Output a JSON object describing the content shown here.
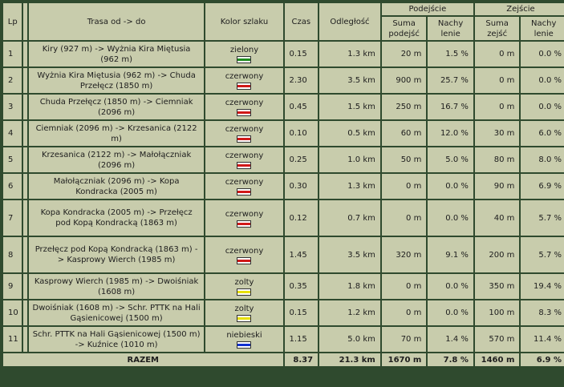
{
  "headers": {
    "lp": "Lp",
    "route": "Trasa od -> do",
    "color": "Kolor szlaku",
    "time": "Czas",
    "distance": "Odległość",
    "ascent": "Podejście",
    "descent": "Zejście",
    "sum_ascent": "Suma podejść",
    "slope": "Nachy lenie",
    "sum_descent": "Suma zejść",
    "slope2": "Nachy lenie"
  },
  "trail_colors": {
    "zielony": "#1e8c1e",
    "czerwony": "#d01818",
    "zolty": "#e8e000",
    "niebieski": "#1030d0"
  },
  "rows": [
    {
      "lp": "1",
      "route": "Kiry (927 m) -> Wyżnia Kira Miętusia (962 m)",
      "color": "zielony",
      "time": "0.15",
      "distance": "1.3 km",
      "ascent": "20 m",
      "ascent_slope": "1.5 %",
      "descent": "0 m",
      "descent_slope": "0.0 %"
    },
    {
      "lp": "2",
      "route": "Wyżnia Kira Miętusia (962 m) -> Chuda Przełęcz (1850 m)",
      "color": "czerwony",
      "time": "2.30",
      "distance": "3.5 km",
      "ascent": "900 m",
      "ascent_slope": "25.7 %",
      "descent": "0 m",
      "descent_slope": "0.0 %"
    },
    {
      "lp": "3",
      "route": "Chuda Przełęcz (1850 m) -> Ciemniak (2096 m)",
      "color": "czerwony",
      "time": "0.45",
      "distance": "1.5 km",
      "ascent": "250 m",
      "ascent_slope": "16.7 %",
      "descent": "0 m",
      "descent_slope": "0.0 %"
    },
    {
      "lp": "4",
      "route": "Ciemniak (2096 m) -> Krzesanica (2122 m)",
      "color": "czerwony",
      "time": "0.10",
      "distance": "0.5 km",
      "ascent": "60 m",
      "ascent_slope": "12.0 %",
      "descent": "30 m",
      "descent_slope": "6.0 %"
    },
    {
      "lp": "5",
      "route": "Krzesanica (2122 m) -> Małołączniak (2096 m)",
      "color": "czerwony",
      "time": "0.25",
      "distance": "1.0 km",
      "ascent": "50 m",
      "ascent_slope": "5.0 %",
      "descent": "80 m",
      "descent_slope": "8.0 %"
    },
    {
      "lp": "6",
      "route": "Małołączniak (2096 m) -> Kopa Kondracka (2005 m)",
      "color": "czerwony",
      "time": "0.30",
      "distance": "1.3 km",
      "ascent": "0 m",
      "ascent_slope": "0.0 %",
      "descent": "90 m",
      "descent_slope": "6.9 %"
    },
    {
      "lp": "7",
      "route": "Kopa Kondracka (2005 m) -> Przełęcz pod Kopą Kondracką (1863 m)",
      "color": "czerwony",
      "time": "0.12",
      "distance": "0.7 km",
      "ascent": "0 m",
      "ascent_slope": "0.0 %",
      "descent": "40 m",
      "descent_slope": "5.7 %",
      "tall": true
    },
    {
      "lp": "8",
      "route": "Przełęcz pod Kopą Kondracką (1863 m) -> Kasprowy Wierch (1985 m)",
      "color": "czerwony",
      "time": "1.45",
      "distance": "3.5 km",
      "ascent": "320 m",
      "ascent_slope": "9.1 %",
      "descent": "200 m",
      "descent_slope": "5.7 %",
      "tall": true
    },
    {
      "lp": "9",
      "route": "Kasprowy Wierch (1985 m) -> Dwoiśniak (1608 m)",
      "color": "zolty",
      "time": "0.35",
      "distance": "1.8 km",
      "ascent": "0 m",
      "ascent_slope": "0.0 %",
      "descent": "350 m",
      "descent_slope": "19.4 %"
    },
    {
      "lp": "10",
      "route": "Dwoiśniak (1608 m) -> Schr. PTTK na Hali Gąsienicowej (1500 m)",
      "color": "zolty",
      "time": "0.15",
      "distance": "1.2 km",
      "ascent": "0 m",
      "ascent_slope": "0.0 %",
      "descent": "100 m",
      "descent_slope": "8.3 %"
    },
    {
      "lp": "11",
      "route": "Schr. PTTK na Hali Gąsienicowej (1500 m) -> Kuźnice (1010 m)",
      "color": "niebieski",
      "time": "1.15",
      "distance": "5.0 km",
      "ascent": "70 m",
      "ascent_slope": "1.4 %",
      "descent": "570 m",
      "descent_slope": "11.4 %"
    }
  ],
  "total": {
    "label": "RAZEM",
    "time": "8.37",
    "distance": "21.3 km",
    "ascent": "1670 m",
    "ascent_slope": "7.8 %",
    "descent": "1460 m",
    "descent_slope": "6.9 %"
  }
}
